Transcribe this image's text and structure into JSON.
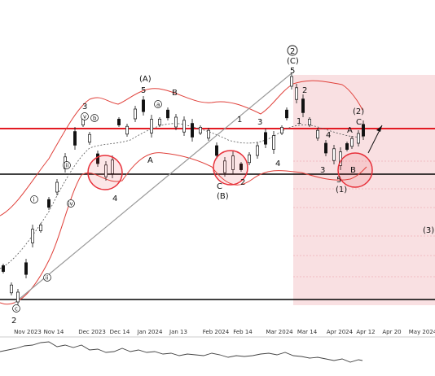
{
  "chart_data": {
    "type": "candlestick",
    "x_ticks": [
      "Nov 2023",
      "Nov 14",
      "Dec 2023",
      "Dec 14",
      "Jan 2024",
      "Jan 13",
      "Feb 2024",
      "Feb 14",
      "Mar 2024",
      "Mar 14",
      "Apr 2024",
      "Apr 12",
      "Apr 20",
      "May 2024"
    ],
    "colors": {
      "up_candle": "#ffffff",
      "down_candle": "#111111",
      "bollinger": "#e0403a",
      "projection_zone": "#f6d3d5",
      "horizontal_red": "#e31b23",
      "horizontal_black": "#000000",
      "circles": "#e8303a",
      "trendline": "#999999"
    },
    "wave_labels": [
      {
        "id": "w2a",
        "text": "2"
      },
      {
        "id": "w3a",
        "text": "3"
      },
      {
        "id": "w4a",
        "text": "4"
      },
      {
        "id": "wA5",
        "text": "5"
      },
      {
        "id": "wAparen",
        "text": "(A)"
      },
      {
        "id": "wA",
        "text": "A"
      },
      {
        "id": "wB",
        "text": "B"
      },
      {
        "id": "wC",
        "text": "C"
      },
      {
        "id": "wBparen",
        "text": "(B)"
      },
      {
        "id": "w1b",
        "text": "1"
      },
      {
        "id": "w2b",
        "text": "2"
      },
      {
        "id": "w3b",
        "text": "3"
      },
      {
        "id": "w4b",
        "text": "4"
      },
      {
        "id": "w5c",
        "text": "5"
      },
      {
        "id": "wCparen",
        "text": "(C)"
      },
      {
        "id": "wCircle2",
        "text": "2"
      },
      {
        "id": "w1c",
        "text": "1"
      },
      {
        "id": "w2c",
        "text": "2"
      },
      {
        "id": "w3c",
        "text": "3"
      },
      {
        "id": "w4c",
        "text": "4"
      },
      {
        "id": "w5d",
        "text": "5"
      },
      {
        "id": "w1paren",
        "text": "(1)"
      },
      {
        "id": "wAd",
        "text": "A"
      },
      {
        "id": "wBd",
        "text": "B"
      },
      {
        "id": "wCd",
        "text": "C"
      },
      {
        "id": "w2paren",
        "text": "(2)"
      },
      {
        "id": "w3paren",
        "text": "(3)"
      }
    ],
    "minor_labels": [
      "i",
      "ii",
      "iii",
      "iv",
      "v",
      "a",
      "b",
      "c"
    ]
  }
}
